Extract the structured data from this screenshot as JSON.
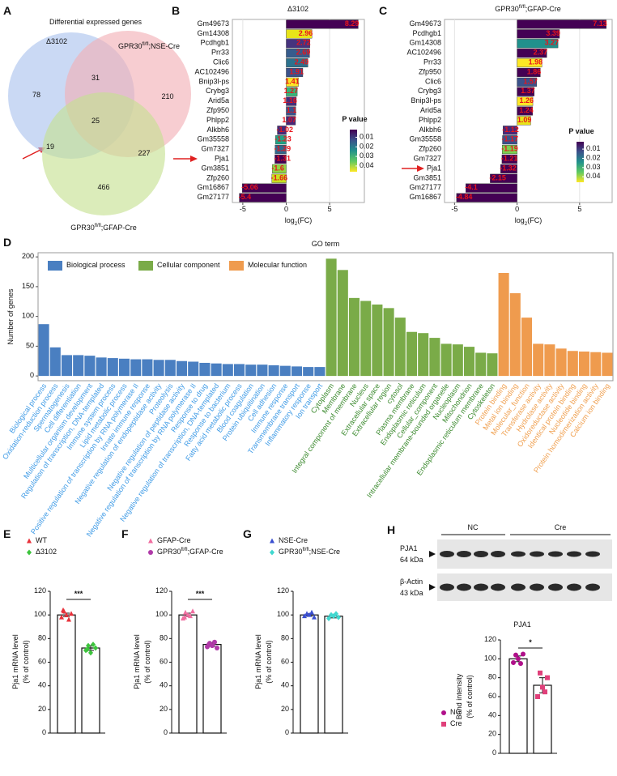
{
  "chart_data": [
    {
      "type": "venn",
      "panel": "A",
      "title": "Differential expressed genes",
      "sets": [
        {
          "name": "Δ3102",
          "color": "#a9c2ee"
        },
        {
          "name": "GPR30fl/fl;NSE-Cre",
          "color": "#f2aeb4"
        },
        {
          "name": "GPR30fl/fl;GFAP-Cre",
          "color": "#c5e08f"
        }
      ],
      "values": [
        78,
        31,
        210,
        25,
        19,
        227,
        466
      ]
    },
    {
      "type": "hbar",
      "panel": "B",
      "title": "Δ3102",
      "xlabel": "log2(FC)",
      "categories": [
        "Gm49673",
        "Gm14308",
        "Pcdhgb1",
        "Prr33",
        "Clic6",
        "AC102496",
        "Bnip3l-ps",
        "Crybg3",
        "Arid5a",
        "Zfp950",
        "Phlpp2",
        "Alkbh6",
        "Gm35558",
        "Gm7327",
        "Pja1",
        "Gm3851",
        "Zfp260",
        "Gm16867",
        "Gm27177"
      ],
      "values": [
        8.29,
        2.96,
        2.72,
        2.69,
        2.49,
        1.91,
        1.41,
        1.27,
        1.16,
        1.1,
        1.07,
        -1.02,
        -1.23,
        -1.29,
        -1.31,
        -1.6,
        -1.66,
        -5.06,
        -5.4
      ],
      "colors": [
        "#440154",
        "#e8e419",
        "#46337e",
        "#365c8d",
        "#2c728e",
        "#3b528b",
        "#fde725",
        "#35b779",
        "#472d7b",
        "#3b528b",
        "#482878",
        "#482878",
        "#20a486",
        "#31688e",
        "#440154",
        "#90d743",
        "#c8e020",
        "#440154",
        "#440154"
      ],
      "xlim": [
        -6.2,
        9.0
      ],
      "xticks": [
        -5,
        0,
        5
      ],
      "grid": true,
      "colorbar": {
        "title": "P value",
        "lim": [
          0.002,
          0.046
        ],
        "ticks": [
          0.01,
          0.02,
          0.03,
          0.04
        ],
        "colors": [
          "#440154",
          "#3b528b",
          "#21918c",
          "#5ec962",
          "#fde725"
        ]
      }
    },
    {
      "type": "hbar",
      "panel": "C",
      "title": "GPR30fl/fl;GFAP-Cre",
      "xlabel": "log2(FC)",
      "categories": [
        "Gm49673",
        "Pcdhgb1",
        "Gm14308",
        "AC102496",
        "Prr33",
        "Zfp950",
        "Clic6",
        "Crybg3",
        "Bnip3l-ps",
        "Arid5a",
        "Phlpp2",
        "Alkbh6",
        "Gm35558",
        "Zfp260",
        "Gm7327",
        "Pja1",
        "Gm3851",
        "Gm27177",
        "Gm16867"
      ],
      "values": [
        7.13,
        3.39,
        3.27,
        2.37,
        1.98,
        1.86,
        1.57,
        1.37,
        1.26,
        1.24,
        1.09,
        -1.12,
        -1.17,
        -1.19,
        -1.21,
        -1.32,
        -2.15,
        -4.1,
        -4.84
      ],
      "colors": [
        "#440154",
        "#440154",
        "#21918c",
        "#440154",
        "#fde725",
        "#440154",
        "#3b528b",
        "#440154",
        "#fde725",
        "#440154",
        "#e8e419",
        "#482878",
        "#3b528b",
        "#7ad151",
        "#440154",
        "#440154",
        "#440154",
        "#440154",
        "#440154"
      ],
      "xlim": [
        -5.8,
        7.6
      ],
      "xticks": [
        -5,
        0,
        5
      ],
      "grid": true,
      "colorbar": {
        "title": "P value",
        "lim": [
          0.002,
          0.046
        ],
        "ticks": [
          0.01,
          0.02,
          0.03,
          0.04
        ],
        "colors": [
          "#440154",
          "#3b528b",
          "#21918c",
          "#5ec962",
          "#fde725"
        ]
      }
    },
    {
      "type": "bar",
      "panel": "D",
      "title": "GO term",
      "ylabel": "Number of genes",
      "ylim": [
        -8,
        207
      ],
      "yticks": [
        0,
        50,
        100,
        150,
        200
      ],
      "series": [
        {
          "name": "Biological process",
          "color": "#4a7fc1",
          "label_color": "#3f9be6",
          "categories": [
            "Biological process",
            "Oxidation-reduction process",
            "Spermatogenesis",
            "Cell differentiation",
            "Multicellular organism development",
            "Regulation of transcription, DNA-templated",
            "Immune system process",
            "Lipid metabolic process",
            "Positive regulation of transcription by RNA polymerase II",
            "Innate immune response",
            "Negative regulation of endopeptidase activity",
            "Proteolysis",
            "Negative regulation of peptidase activity",
            "Negative regulation of transcription by RNA polymerase II",
            "Response to drug",
            "Negative regulation of transcription, DNA-templated",
            "Response to bacterium",
            "Fatty acid metabolic process",
            "Blood coagulation",
            "Protein ubiquitination",
            "Cell adhesion",
            "Immune response",
            "Transmembrane transport",
            "Inflammatory response",
            "Ion transport"
          ],
          "values": [
            87,
            48,
            35,
            35,
            34,
            31,
            30,
            29,
            28,
            28,
            27,
            27,
            25,
            24,
            22,
            21,
            20,
            20,
            19,
            19,
            18,
            17,
            16,
            15,
            15
          ]
        },
        {
          "name": "Cellular component",
          "color": "#7aab48",
          "label_color": "#3d8b30",
          "categories": [
            "Cytoplasm",
            "Membrane",
            "Integral component of membrane",
            "Nucleus",
            "Extracellular space",
            "Extracellular region",
            "cytosol",
            "Plasma membrane",
            "Endoplasmic reticulum",
            "Cellular_component",
            "Intracellular membrane-bounded organelle",
            "Nucleoplasm",
            "Mitochondrion",
            "Endoplasmic reticulum membrane",
            "Cytoskeleton"
          ],
          "values": [
            197,
            178,
            131,
            126,
            120,
            114,
            98,
            74,
            72,
            64,
            54,
            53,
            49,
            39,
            38
          ]
        },
        {
          "name": "Molecular function",
          "color": "#ef9b4e",
          "label_color": "#f0a050",
          "categories": [
            "Protein binding",
            "Metal ion binding",
            "Molecular_function",
            "Transferase activity",
            "Hydrolase activity",
            "Oxidoreductase activity",
            "Identical protein binding",
            "Nucleotide binding",
            "Protein homodimerization activity",
            "Calcium ion binding"
          ],
          "values": [
            173,
            139,
            98,
            54,
            53,
            46,
            42,
            41,
            40,
            39
          ]
        }
      ]
    },
    {
      "type": "dotbar",
      "panel": "E",
      "ylabel": [
        "Pja1 mRNA level",
        "(% of control)"
      ],
      "categories": [
        "WT",
        "Δ3102"
      ],
      "values": [
        100,
        72
      ],
      "errors": [
        1.5,
        2
      ],
      "points": [
        [
          98,
          103,
          100,
          96,
          101,
          104
        ],
        [
          70,
          74,
          68,
          75,
          72,
          71
        ]
      ],
      "colors": [
        "#e8303a",
        "#3cc43c"
      ],
      "markers": [
        "triangle",
        "diamond"
      ],
      "significance": "***",
      "ylim": [
        0,
        120
      ],
      "yticks": [
        0,
        20,
        40,
        60,
        80,
        100,
        120
      ]
    },
    {
      "type": "dotbar",
      "panel": "F",
      "ylabel": [
        "Pja1 mRNA level",
        "(% of control)"
      ],
      "categories": [
        "GFAP-Cre",
        "GPR30fl/fl;GFAP-Cre"
      ],
      "values": [
        100,
        75
      ],
      "errors": [
        1.5,
        1.5
      ],
      "points": [
        [
          97,
          102,
          100,
          99,
          103,
          98
        ],
        [
          73,
          76,
          74,
          77,
          72,
          75
        ]
      ],
      "colors": [
        "#f06ea0",
        "#b03aa8"
      ],
      "markers": [
        "triangle",
        "circle"
      ],
      "significance": "***",
      "ylim": [
        0,
        120
      ],
      "yticks": [
        0,
        20,
        40,
        60,
        80,
        100,
        120
      ]
    },
    {
      "type": "dotbar",
      "panel": "G",
      "ylabel": [
        "Pja1 mRNA level",
        "(% of control)"
      ],
      "categories": [
        "NSE-Cre",
        "GPR30fl/fl;NSE-Cre"
      ],
      "values": [
        100,
        99
      ],
      "errors": [
        1,
        1.5
      ],
      "points": [
        [
          99,
          101,
          100,
          102,
          98
        ],
        [
          97,
          100,
          99,
          101,
          98
        ]
      ],
      "colors": [
        "#3a4fd0",
        "#40d8d0"
      ],
      "markers": [
        "triangle",
        "diamond"
      ],
      "ylim": [
        0,
        120
      ],
      "yticks": [
        0,
        20,
        40,
        60,
        80,
        100,
        120
      ]
    },
    {
      "type": "dotbar",
      "panel": "H",
      "title": "PJA1",
      "ylabel": [
        "Band intensity",
        "(% of control)"
      ],
      "categories": [
        "NC",
        "Cre"
      ],
      "values": [
        100,
        72
      ],
      "errors": [
        3,
        8
      ],
      "points": [
        [
          96,
          104,
          100,
          95,
          105
        ],
        [
          60,
          85,
          70,
          65,
          80
        ]
      ],
      "colors": [
        "#b0108a",
        "#e0407a"
      ],
      "markers": [
        "circle",
        "square"
      ],
      "significance": "*",
      "ylim": [
        0,
        120
      ],
      "yticks": [
        0,
        20,
        40,
        60,
        80,
        100,
        120
      ],
      "blot_groups": [
        "NC",
        "Cre"
      ],
      "blot_bands": [
        "PJA1",
        "β-Actin"
      ],
      "blot_sizes": [
        "64 kDa",
        "43 kDa"
      ]
    }
  ]
}
